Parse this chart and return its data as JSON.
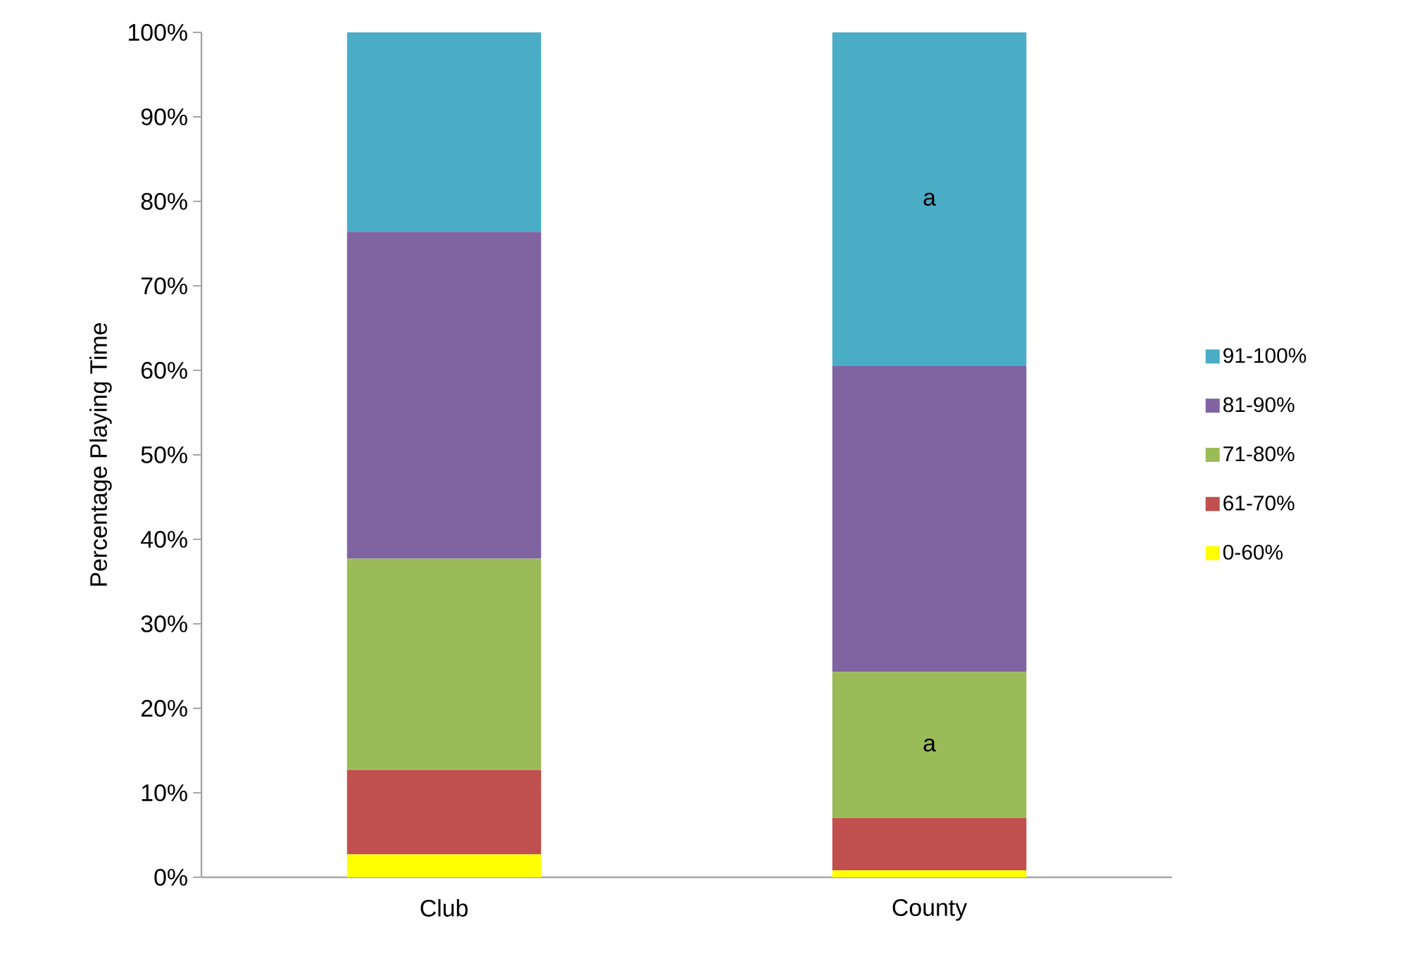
{
  "chart_data": {
    "type": "bar",
    "stacked": true,
    "ylabel": "Percentage Playing Time",
    "categories": [
      "Club",
      "County"
    ],
    "series": [
      {
        "name": "0-60%",
        "color": "#ffff00",
        "values": [
          2.7,
          0.8
        ]
      },
      {
        "name": "61-70%",
        "color": "#c0504d",
        "values": [
          10.0,
          6.2
        ]
      },
      {
        "name": "71-80%",
        "color": "#9bbb59",
        "values": [
          25.0,
          17.3
        ]
      },
      {
        "name": "81-90%",
        "color": "#8064a2",
        "values": [
          38.7,
          36.2
        ]
      },
      {
        "name": "91-100%",
        "color": "#4bacc6",
        "values": [
          23.6,
          39.5
        ]
      }
    ],
    "ylim": [
      0,
      100
    ],
    "yticks": [
      {
        "value": 0,
        "label": "0%"
      },
      {
        "value": 10,
        "label": "10%"
      },
      {
        "value": 20,
        "label": "20%"
      },
      {
        "value": 30,
        "label": "30%"
      },
      {
        "value": 40,
        "label": "40%"
      },
      {
        "value": 50,
        "label": "50%"
      },
      {
        "value": 60,
        "label": "60%"
      },
      {
        "value": 70,
        "label": "70%"
      },
      {
        "value": 80,
        "label": "80%"
      },
      {
        "value": 90,
        "label": "90%"
      },
      {
        "value": 100,
        "label": "100%"
      }
    ],
    "annotations": [
      "a",
      "a"
    ],
    "legend": "right",
    "grid": false
  }
}
